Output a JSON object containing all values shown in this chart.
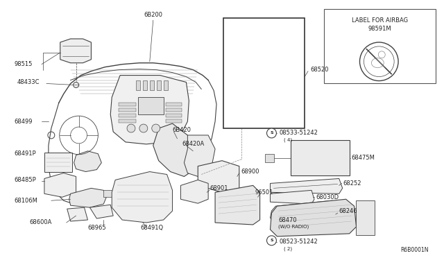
{
  "bg_color": "#ffffff",
  "line_color": "#404040",
  "label_color": "#222222",
  "font_size": 6.0,
  "font_size_small": 5.0,
  "diagram_ref": "R6B0001N",
  "inset_title1": "LABEL FOR AIRBAG",
  "inset_title2": "98591M",
  "figsize": [
    6.4,
    3.72
  ],
  "dpi": 100
}
